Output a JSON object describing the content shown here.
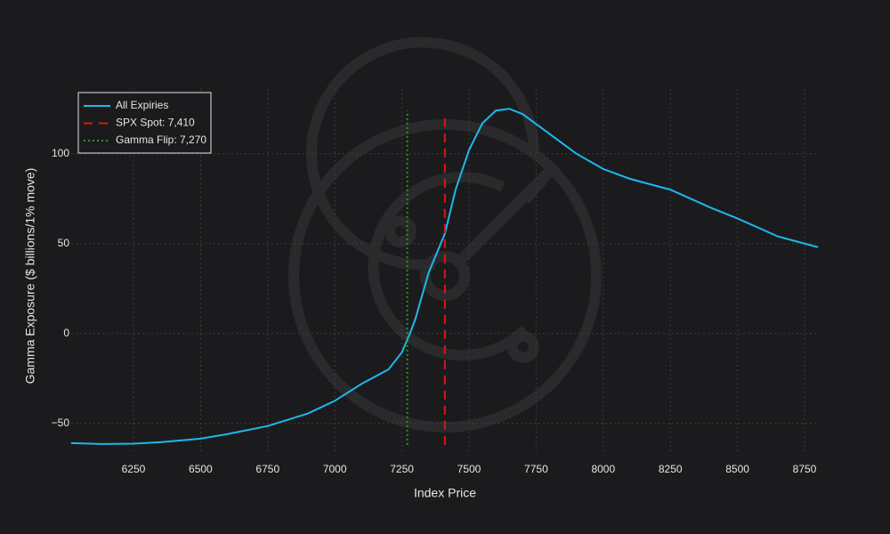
{
  "chart_data": {
    "type": "line",
    "x_label": "Index Price",
    "y_label": "Gamma Exposure ($ billions/1% move)",
    "xlim": [
      6018,
      8803
    ],
    "ylim": [
      -67,
      136
    ],
    "xticks": [
      6250,
      6500,
      6750,
      7000,
      7250,
      7500,
      7750,
      8000,
      8250,
      8500,
      8750
    ],
    "yticks": [
      {
        "value": -50,
        "label": "−50"
      },
      0,
      50,
      100
    ],
    "grid": true,
    "legend": "upper left",
    "series": [
      {
        "name": "All Expiries",
        "color": "#1fb7ec",
        "style": "solid",
        "x": [
          6018,
          6130,
          6250,
          6350,
          6500,
          6600,
          6750,
          6900,
          7000,
          7100,
          7200,
          7250,
          7280,
          7300,
          7350,
          7410,
          7450,
          7500,
          7550,
          7600,
          7650,
          7700,
          7800,
          7900,
          8000,
          8100,
          8250,
          8400,
          8500,
          8650,
          8800
        ],
        "values": [
          -61,
          -61.5,
          -61.3,
          -60.5,
          -58.5,
          -56,
          -51.5,
          -44.5,
          -37.5,
          -28,
          -20,
          -10.5,
          0,
          8,
          34,
          55.5,
          80,
          102,
          117,
          124,
          125,
          122,
          111,
          100,
          91.5,
          86,
          80,
          70,
          64,
          54,
          48
        ]
      },
      {
        "name": "SPX Spot: 7,410",
        "color": "#e01414",
        "style": "dashed",
        "x": [
          7410,
          7410
        ],
        "values": [
          -62,
          121
        ]
      },
      {
        "name": "Gamma Flip: 7,270",
        "color": "#1e9e1e",
        "style": "dotted",
        "x": [
          7270,
          7270
        ],
        "values": [
          -62,
          124
        ]
      }
    ]
  }
}
